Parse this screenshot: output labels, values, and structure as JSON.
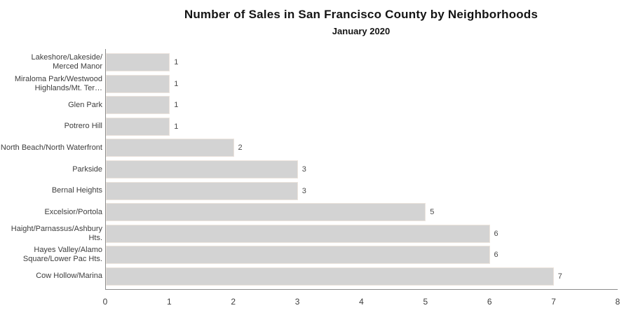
{
  "chart_data": {
    "type": "bar",
    "orientation": "horizontal",
    "title": "Number of Sales in San Francisco County by Neighborhoods",
    "subtitle": "January 2020",
    "categories": [
      "Lakeshore/Lakeside/\nMerced Manor",
      "Miraloma Park/Westwood\nHighlands/Mt. Ter…",
      "Glen Park",
      "Potrero Hill",
      "North Beach/North Waterfront",
      "Parkside",
      "Bernal Heights",
      "Excelsior/Portola",
      "Haight/Parnassus/Ashbury\nHts.",
      "Hayes Valley/Alamo\nSquare/Lower Pac Hts.",
      "Cow Hollow/Marina"
    ],
    "values": [
      1,
      1,
      1,
      1,
      2,
      3,
      3,
      5,
      6,
      6,
      7
    ],
    "x_ticks": [
      0,
      1,
      2,
      3,
      4,
      5,
      6,
      7,
      8
    ],
    "xlim": [
      0,
      8
    ],
    "xlabel": "",
    "ylabel": "",
    "grid": false,
    "legend": false,
    "bar_color": "#d3d3d3",
    "bar_border_color": "#ece4dd",
    "axis_color": "#8c8c8c",
    "label_color": "#3d3d3d",
    "value_label_color": "#4a4a4a"
  }
}
